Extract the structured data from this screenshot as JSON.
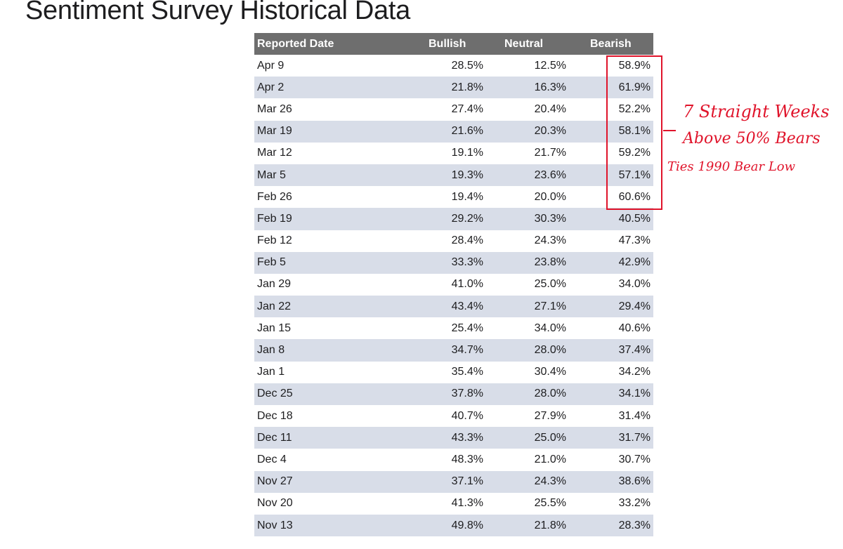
{
  "page": {
    "title": "Sentiment Survey Historical Data"
  },
  "table": {
    "headers": [
      "Reported Date",
      "Bullish",
      "Neutral",
      "Bearish"
    ],
    "rows": [
      [
        "Apr 9",
        "28.5%",
        "12.5%",
        "58.9%"
      ],
      [
        "Apr 2",
        "21.8%",
        "16.3%",
        "61.9%"
      ],
      [
        "Mar 26",
        "27.4%",
        "20.4%",
        "52.2%"
      ],
      [
        "Mar 19",
        "21.6%",
        "20.3%",
        "58.1%"
      ],
      [
        "Mar 12",
        "19.1%",
        "21.7%",
        "59.2%"
      ],
      [
        "Mar 5",
        "19.3%",
        "23.6%",
        "57.1%"
      ],
      [
        "Feb 26",
        "19.4%",
        "20.0%",
        "60.6%"
      ],
      [
        "Feb 19",
        "29.2%",
        "30.3%",
        "40.5%"
      ],
      [
        "Feb 12",
        "28.4%",
        "24.3%",
        "47.3%"
      ],
      [
        "Feb 5",
        "33.3%",
        "23.8%",
        "42.9%"
      ],
      [
        "Jan 29",
        "41.0%",
        "25.0%",
        "34.0%"
      ],
      [
        "Jan 22",
        "43.4%",
        "27.1%",
        "29.4%"
      ],
      [
        "Jan 15",
        "25.4%",
        "34.0%",
        "40.6%"
      ],
      [
        "Jan 8",
        "34.7%",
        "28.0%",
        "37.4%"
      ],
      [
        "Jan 1",
        "35.4%",
        "30.4%",
        "34.2%"
      ],
      [
        "Dec 25",
        "37.8%",
        "28.0%",
        "34.1%"
      ],
      [
        "Dec 18",
        "40.7%",
        "27.9%",
        "31.4%"
      ],
      [
        "Dec 11",
        "43.3%",
        "25.0%",
        "31.7%"
      ],
      [
        "Dec 4",
        "48.3%",
        "21.0%",
        "30.7%"
      ],
      [
        "Nov 27",
        "37.1%",
        "24.3%",
        "38.6%"
      ],
      [
        "Nov 20",
        "41.3%",
        "25.5%",
        "33.2%"
      ],
      [
        "Nov 13",
        "49.8%",
        "21.8%",
        "28.3%"
      ]
    ]
  },
  "annotation": {
    "line1": "7 Straight Weeks",
    "line2": "Above 50% Bears",
    "line3": "Ties 1990 Bear Low",
    "color": "#e0142b"
  },
  "colors": {
    "header_bg": "#6e6e6e",
    "alt_row_bg": "#d8dde8"
  }
}
